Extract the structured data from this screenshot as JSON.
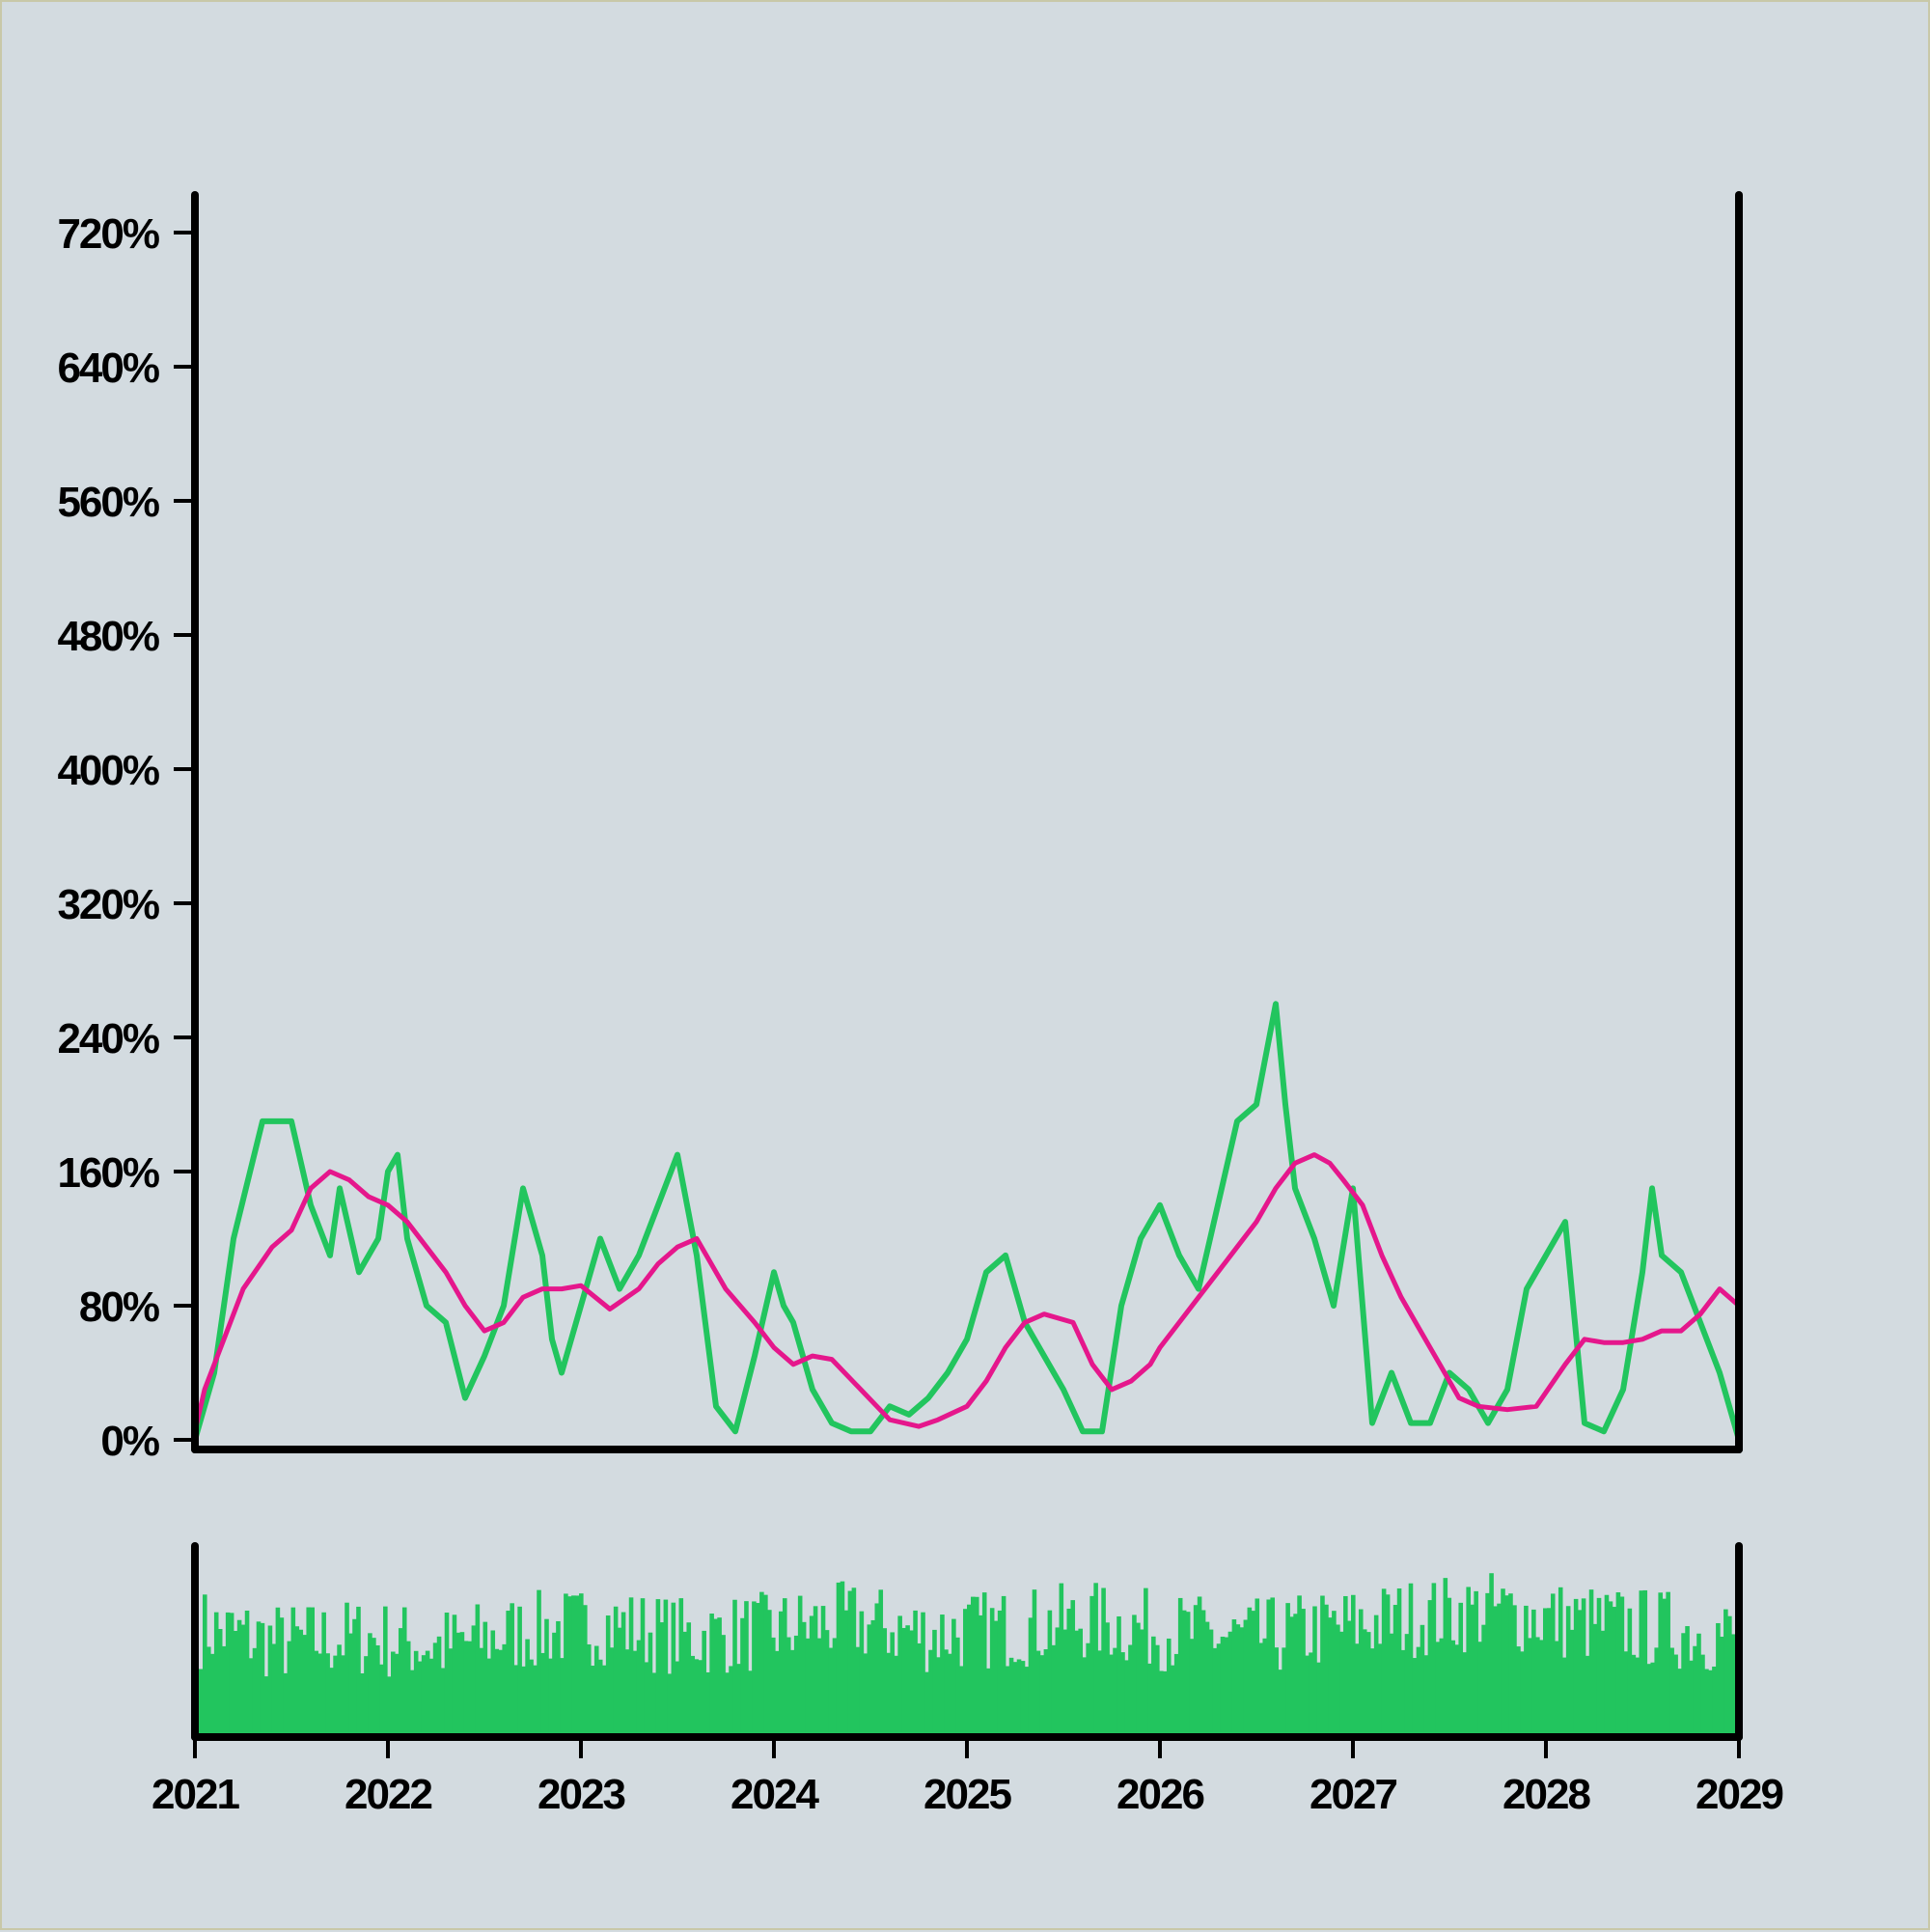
{
  "chart_data": [
    {
      "type": "line",
      "title": "",
      "xlabel": "",
      "ylabel": "",
      "xlim": [
        2021,
        2029
      ],
      "ylim": [
        0,
        800
      ],
      "yticks": [
        0,
        80,
        160,
        240,
        320,
        400,
        480,
        560,
        640,
        720
      ],
      "ytick_labels": [
        "0%",
        "80%",
        "160%",
        "240%",
        "320%",
        "400%",
        "480%",
        "560%",
        "640%",
        "720%"
      ],
      "grid": false,
      "series": [
        {
          "color": "#22c55e",
          "x": [
            2021.0,
            2021.1,
            2021.2,
            2021.35,
            2021.5,
            2021.6,
            2021.7,
            2021.75,
            2021.85,
            2021.95,
            2022.0,
            2022.05,
            2022.1,
            2022.2,
            2022.3,
            2022.4,
            2022.5,
            2022.6,
            2022.7,
            2022.8,
            2022.85,
            2022.9,
            2023.0,
            2023.1,
            2023.2,
            2023.3,
            2023.4,
            2023.5,
            2023.6,
            2023.7,
            2023.8,
            2023.9,
            2024.0,
            2024.05,
            2024.1,
            2024.2,
            2024.3,
            2024.4,
            2024.5,
            2024.6,
            2024.7,
            2024.8,
            2024.9,
            2025.0,
            2025.1,
            2025.2,
            2025.3,
            2025.4,
            2025.5,
            2025.6,
            2025.7,
            2025.8,
            2025.9,
            2026.0,
            2026.1,
            2026.2,
            2026.3,
            2026.4,
            2026.5,
            2026.6,
            2026.65,
            2026.7,
            2026.8,
            2026.9,
            2027.0,
            2027.1,
            2027.2,
            2027.3,
            2027.4,
            2027.5,
            2027.6,
            2027.7,
            2027.8,
            2027.9,
            2028.0,
            2028.1,
            2028.2,
            2028.3,
            2028.4,
            2028.5,
            2028.55,
            2028.6,
            2028.7,
            2028.8,
            2028.9,
            2029.0
          ],
          "values": [
            0,
            40,
            120,
            190,
            190,
            140,
            110,
            150,
            100,
            120,
            160,
            170,
            120,
            80,
            70,
            25,
            50,
            80,
            150,
            110,
            60,
            40,
            80,
            120,
            90,
            110,
            140,
            170,
            110,
            20,
            5,
            50,
            100,
            80,
            70,
            30,
            10,
            5,
            5,
            20,
            15,
            25,
            40,
            60,
            100,
            110,
            70,
            50,
            30,
            5,
            5,
            80,
            120,
            140,
            110,
            90,
            140,
            190,
            200,
            260,
            200,
            150,
            120,
            80,
            150,
            10,
            40,
            10,
            10,
            40,
            30,
            10,
            30,
            90,
            110,
            130,
            10,
            5,
            30,
            100,
            150,
            110,
            100,
            70,
            40,
            0
          ]
        },
        {
          "color": "#e5178c",
          "x": [
            2021.0,
            2021.05,
            2021.15,
            2021.25,
            2021.4,
            2021.5,
            2021.6,
            2021.7,
            2021.8,
            2021.9,
            2022.0,
            2022.1,
            2022.2,
            2022.3,
            2022.4,
            2022.5,
            2022.6,
            2022.7,
            2022.8,
            2022.9,
            2023.0,
            2023.15,
            2023.3,
            2023.4,
            2023.5,
            2023.6,
            2023.75,
            2023.9,
            2024.0,
            2024.1,
            2024.2,
            2024.3,
            2024.45,
            2024.6,
            2024.75,
            2024.85,
            2025.0,
            2025.1,
            2025.2,
            2025.3,
            2025.4,
            2025.55,
            2025.65,
            2025.75,
            2025.85,
            2025.95,
            2026.0,
            2026.1,
            2026.2,
            2026.3,
            2026.4,
            2026.5,
            2026.6,
            2026.7,
            2026.8,
            2026.88,
            2026.95,
            2027.05,
            2027.15,
            2027.25,
            2027.35,
            2027.45,
            2027.55,
            2027.65,
            2027.8,
            2027.95,
            2028.1,
            2028.2,
            2028.3,
            2028.4,
            2028.5,
            2028.6,
            2028.7,
            2028.8,
            2028.9,
            2029.0
          ],
          "values": [
            5,
            30,
            60,
            90,
            115,
            125,
            150,
            160,
            155,
            145,
            140,
            130,
            115,
            100,
            80,
            65,
            70,
            85,
            90,
            90,
            92,
            78,
            90,
            105,
            115,
            120,
            90,
            70,
            55,
            45,
            50,
            48,
            30,
            12,
            8,
            12,
            20,
            35,
            55,
            70,
            75,
            70,
            45,
            30,
            35,
            45,
            55,
            70,
            85,
            100,
            115,
            130,
            150,
            165,
            170,
            165,
            155,
            140,
            110,
            85,
            65,
            45,
            25,
            20,
            18,
            20,
            45,
            60,
            58,
            58,
            60,
            65,
            65,
            75,
            90,
            80
          ]
        }
      ]
    },
    {
      "type": "bar",
      "title": "",
      "xlabel": "",
      "ylabel": "",
      "xlim": [
        2021,
        2029
      ],
      "xticks": [
        "2021",
        "2022",
        "2023",
        "2024",
        "2025",
        "2026",
        "2027",
        "2028",
        "2029"
      ],
      "color": "#22c55e",
      "bar_count": 400,
      "level_profile": [
        0.6,
        0.52,
        0.55,
        0.5,
        0.58,
        0.62,
        0.55,
        0.58,
        0.64,
        0.57,
        0.6,
        0.64,
        0.58,
        0.54,
        0.6,
        0.66,
        0.7,
        0.63,
        0.6,
        0.56
      ]
    }
  ]
}
